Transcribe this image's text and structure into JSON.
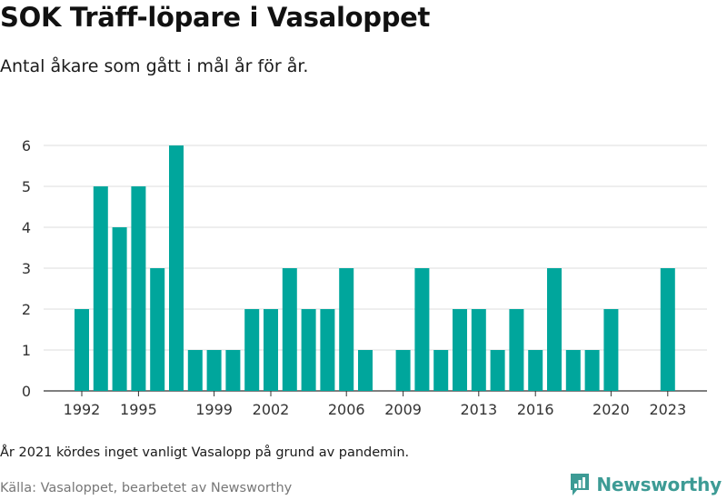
{
  "header": {
    "title": "SOK Träff-löpare i Vasaloppet",
    "subtitle": "Antal åkare som gått i mål år för år."
  },
  "footer": {
    "note": "År 2021 kördes inget vanligt Vasalopp på grund av pandemin.",
    "source": "Källa: Vasaloppet, bearbetet av Newsworthy",
    "logo_text": "Newsworthy",
    "logo_icon": "newsworthy-logo-icon"
  },
  "colors": {
    "bar": "#00a69c",
    "grid": "#dddddd",
    "logo": "#3d9b95"
  },
  "chart_data": {
    "type": "bar",
    "title": "SOK Träff-löpare i Vasaloppet",
    "subtitle": "Antal åkare som gått i mål år för år.",
    "xlabel": "",
    "ylabel": "",
    "x": [
      1992,
      1993,
      1994,
      1995,
      1996,
      1997,
      1998,
      1999,
      2000,
      2001,
      2002,
      2003,
      2004,
      2005,
      2006,
      2007,
      2008,
      2009,
      2010,
      2011,
      2012,
      2013,
      2014,
      2015,
      2016,
      2017,
      2018,
      2019,
      2020,
      2021,
      2022,
      2023
    ],
    "values": [
      2,
      5,
      4,
      5,
      3,
      6,
      1,
      1,
      1,
      2,
      2,
      3,
      2,
      2,
      3,
      1,
      0,
      1,
      3,
      1,
      2,
      2,
      1,
      2,
      1,
      3,
      1,
      1,
      2,
      0,
      0,
      3
    ],
    "x_ticks": [
      1992,
      1995,
      1999,
      2002,
      2006,
      2009,
      2013,
      2016,
      2020,
      2023
    ],
    "y_ticks": [
      0,
      1,
      2,
      3,
      4,
      5,
      6
    ],
    "ylim": [
      0,
      6
    ],
    "grid": true,
    "legend": "none"
  }
}
